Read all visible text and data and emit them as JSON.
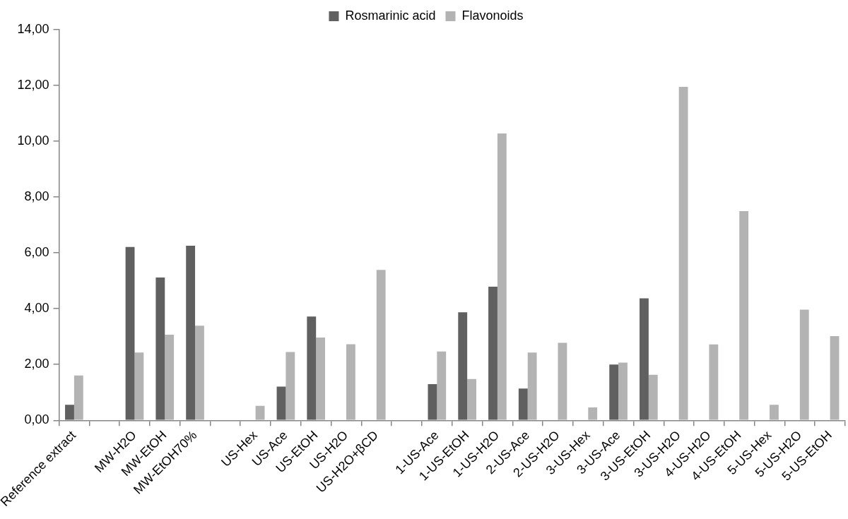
{
  "chart_data": {
    "type": "bar",
    "categories": [
      "Reference extract",
      null,
      "MW-H2O",
      "MW-EtOH",
      "MW-EtOH70%",
      null,
      "US-Hex",
      "US-Ace",
      "US-EtOH",
      "US-H2O",
      "US-H2O+βCD",
      null,
      "1-US-Ace",
      "1-US-EtOH",
      "1-US-H2O",
      "2-US-Ace",
      "2-US-H2O",
      "3-US-Hex",
      "3-US-Ace",
      "3-US-EtOH",
      "3-US-H2O",
      "4-US-H2O",
      "4-US-EtOH",
      "5-US-Hex",
      "5-US-H2O",
      "5-US-EtOH"
    ],
    "series": [
      {
        "name": "Rosmarinic acid",
        "color": "#606060",
        "values": [
          0.56,
          null,
          6.21,
          5.12,
          6.26,
          null,
          null,
          1.21,
          3.72,
          null,
          null,
          null,
          1.3,
          3.87,
          4.79,
          1.14,
          null,
          null,
          2.0,
          4.37,
          null,
          null,
          null,
          null,
          null,
          null
        ]
      },
      {
        "name": "Flavonoids",
        "color": "#b3b3b3",
        "values": [
          1.61,
          null,
          2.43,
          3.07,
          3.39,
          null,
          0.52,
          2.45,
          2.97,
          2.73,
          5.39,
          null,
          2.47,
          1.48,
          10.28,
          2.43,
          2.78,
          0.46,
          2.07,
          1.63,
          11.95,
          2.72,
          7.5,
          0.56,
          3.97,
          3.02
        ]
      }
    ],
    "ylim": [
      0,
      14
    ],
    "yticks": [
      {
        "value": 0,
        "label": "0,00"
      },
      {
        "value": 2,
        "label": "2,00"
      },
      {
        "value": 4,
        "label": "4,00"
      },
      {
        "value": 6,
        "label": "6,00"
      },
      {
        "value": 8,
        "label": "8,00"
      },
      {
        "value": 10,
        "label": "10,00"
      },
      {
        "value": 12,
        "label": "12,00"
      },
      {
        "value": 14,
        "label": "14,00"
      }
    ],
    "grid": false,
    "legend": "top"
  }
}
